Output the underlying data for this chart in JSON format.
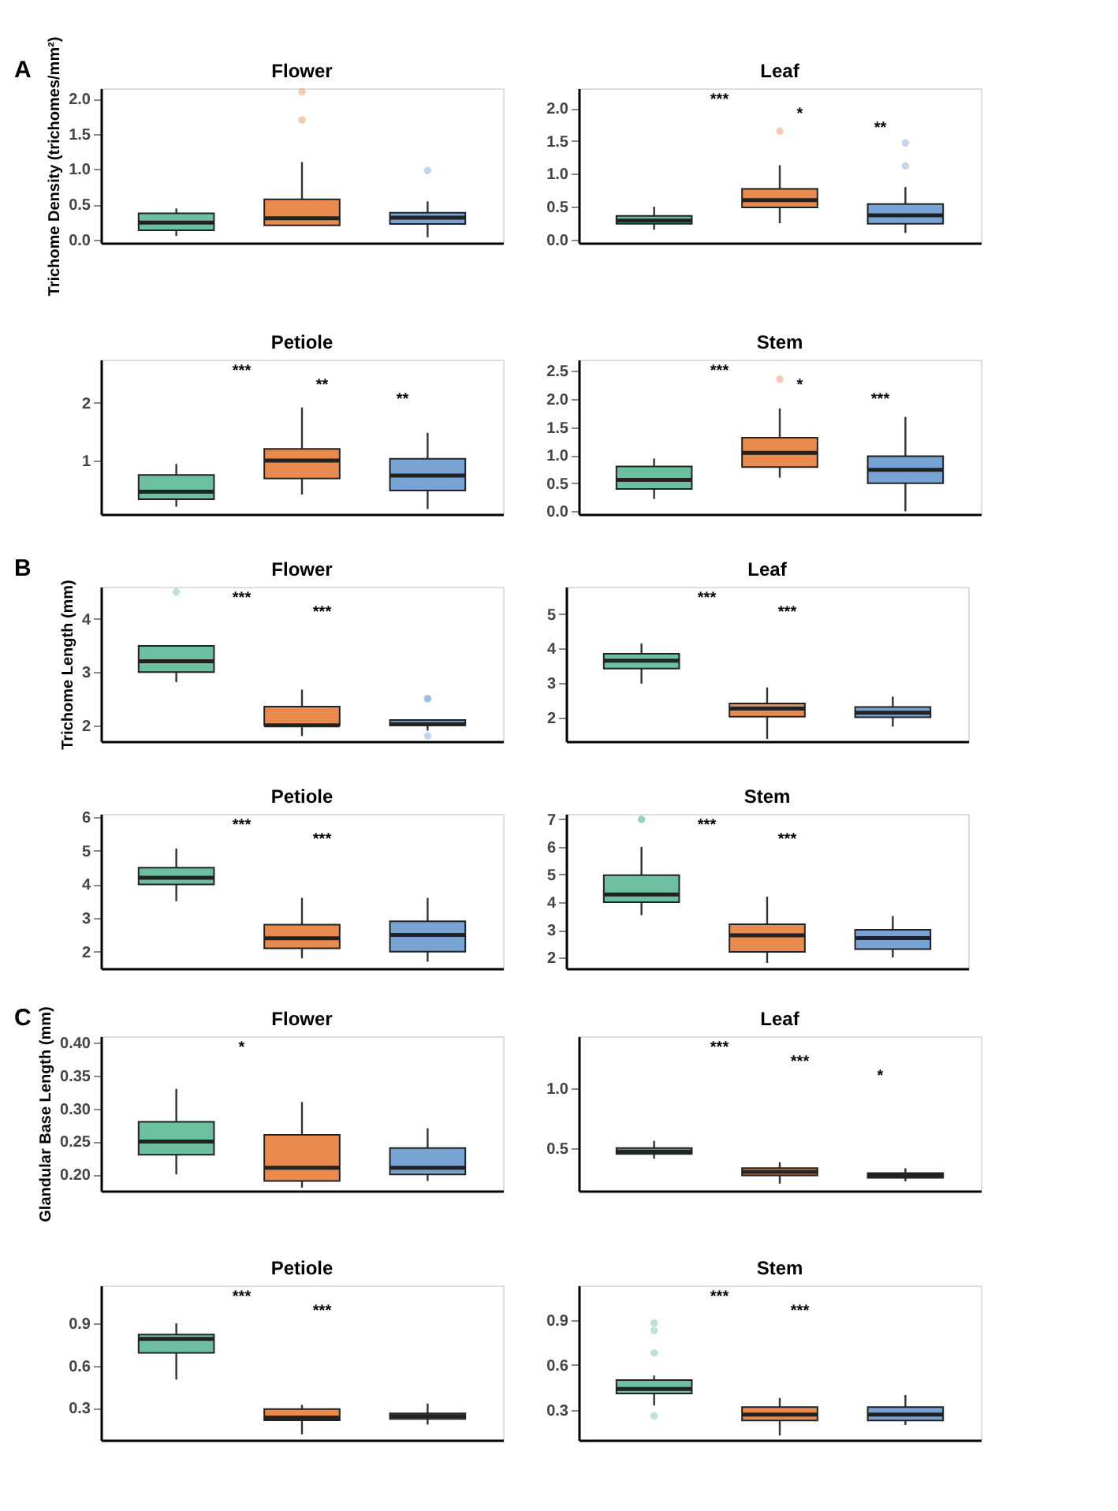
{
  "chart_data": [
    {
      "type": "box",
      "title": "Flower",
      "ylabel": "Trichome Density (trichomes/mm²)",
      "annotations": [
        "A"
      ],
      "categories": [
        null,
        null,
        null
      ],
      "colors": [
        "#6dbfa2",
        "#e98a4f",
        "#77a4d3"
      ],
      "tick_labels": "y",
      "ylim": [
        -0.05,
        2.15
      ],
      "yticks": [
        {
          "value": 0,
          "label": "0.0"
        },
        0.5,
        {
          "value": 1,
          "label": "1.0"
        },
        1.5,
        {
          "value": 2,
          "label": "2.0"
        }
      ],
      "boxes": [
        {
          "low": 0.05,
          "q1": 0.13,
          "median": 0.24,
          "q3": 0.37,
          "high": 0.44
        },
        {
          "low": 0.2,
          "q1": 0.2,
          "median": 0.3,
          "q3": 0.57,
          "high": 1.1,
          "outliers": [
            1.7,
            2.1
          ]
        },
        {
          "low": 0.03,
          "q1": 0.22,
          "median": 0.31,
          "q3": 0.38,
          "high": 0.54,
          "outliers": [
            0.98
          ]
        }
      ]
    },
    {
      "type": "box",
      "title": "Leaf",
      "annotations": [
        "***",
        "*",
        "**"
      ],
      "categories": [
        null,
        null,
        null
      ],
      "colors": [
        "#6dbfa2",
        "#e98a4f",
        "#77a4d3"
      ],
      "tick_labels": "y",
      "ylim": [
        -0.05,
        2.3
      ],
      "yticks": [
        {
          "value": 0,
          "label": "0.0"
        },
        0.5,
        {
          "value": 1,
          "label": "1.0"
        },
        1.5,
        {
          "value": 2,
          "label": "2.0"
        }
      ],
      "boxes": [
        {
          "low": 0.15,
          "q1": 0.24,
          "median": 0.29,
          "q3": 0.36,
          "high": 0.5
        },
        {
          "low": 0.25,
          "q1": 0.49,
          "median": 0.6,
          "q3": 0.77,
          "high": 1.13,
          "outliers": [
            1.65
          ]
        },
        {
          "low": 0.1,
          "q1": 0.24,
          "median": 0.37,
          "q3": 0.54,
          "high": 0.8,
          "outliers": [
            1.12,
            1.47
          ]
        }
      ]
    },
    {
      "type": "box",
      "title": "Petiole",
      "annotations": [
        "***",
        "**",
        "**"
      ],
      "categories": [
        null,
        null,
        null
      ],
      "colors": [
        "#6dbfa2",
        "#e98a4f",
        "#77a4d3"
      ],
      "tick_labels": "y",
      "ylim": [
        0.07,
        2.75
      ],
      "yticks": [
        1,
        2
      ],
      "boxes": [
        {
          "low": 0.2,
          "q1": 0.33,
          "median": 0.46,
          "q3": 0.75,
          "high": 0.94
        },
        {
          "low": 0.41,
          "q1": 0.69,
          "median": 1.0,
          "q3": 1.2,
          "high": 1.92
        },
        {
          "low": 0.16,
          "q1": 0.48,
          "median": 0.74,
          "q3": 1.03,
          "high": 1.48
        }
      ]
    },
    {
      "type": "box",
      "title": "Stem",
      "annotations": [
        "***",
        "*",
        "***"
      ],
      "categories": [
        null,
        null,
        null
      ],
      "colors": [
        "#6dbfa2",
        "#e98a4f",
        "#77a4d3"
      ],
      "tick_labels": "y",
      "ylim": [
        -0.05,
        2.7
      ],
      "yticks": [
        {
          "value": 0,
          "label": "0.0"
        },
        0.5,
        {
          "value": 1,
          "label": "1.0"
        },
        1.5,
        {
          "value": 2,
          "label": "2.0"
        },
        2.5
      ],
      "boxes": [
        {
          "low": 0.22,
          "q1": 0.4,
          "median": 0.56,
          "q3": 0.8,
          "high": 0.94
        },
        {
          "low": 0.6,
          "q1": 0.79,
          "median": 1.04,
          "q3": 1.31,
          "high": 1.83,
          "outliers": [
            2.35
          ]
        },
        {
          "low": 0.0,
          "q1": 0.5,
          "median": 0.74,
          "q3": 0.98,
          "high": 1.68
        }
      ]
    },
    {
      "type": "box",
      "title": "Flower",
      "ylabel": "Trichome Length (mm)",
      "annotations": [
        "B",
        "***",
        "***"
      ],
      "categories": [
        null,
        null,
        null
      ],
      "colors": [
        "#6dbfa2",
        "#e98a4f",
        "#77a4d3"
      ],
      "tick_labels": "y",
      "ylim": [
        1.7,
        4.6
      ],
      "yticks": [
        2,
        3,
        4
      ],
      "boxes": [
        {
          "low": 2.81,
          "q1": 3.0,
          "median": 3.2,
          "q3": 3.49,
          "high": 3.5,
          "outliers": [
            4.5
          ]
        },
        {
          "low": 1.8,
          "q1": 2.0,
          "median": 2.0,
          "q3": 2.35,
          "high": 2.67
        },
        {
          "low": 1.9,
          "q1": 2.0,
          "median": 2.02,
          "q3": 2.1,
          "high": 2.1,
          "outliers": [
            1.8,
            2.5,
            2.5
          ]
        }
      ]
    },
    {
      "type": "box",
      "title": "Leaf",
      "annotations": [
        "***",
        "***"
      ],
      "categories": [
        null,
        null,
        null
      ],
      "colors": [
        "#6dbfa2",
        "#e98a4f",
        "#77a4d3"
      ],
      "tick_labels": "y",
      "ylim": [
        1.3,
        5.8
      ],
      "yticks": [
        2,
        3,
        4,
        5
      ],
      "boxes": [
        {
          "low": 2.98,
          "q1": 3.42,
          "median": 3.65,
          "q3": 3.85,
          "high": 4.15
        },
        {
          "low": 1.37,
          "q1": 2.02,
          "median": 2.25,
          "q3": 2.4,
          "high": 2.87
        },
        {
          "low": 1.73,
          "q1": 2.0,
          "median": 2.13,
          "q3": 2.3,
          "high": 2.6
        }
      ]
    },
    {
      "type": "box",
      "title": "Petiole",
      "annotations": [
        "***",
        "***"
      ],
      "categories": [
        null,
        null,
        null
      ],
      "colors": [
        "#6dbfa2",
        "#e98a4f",
        "#77a4d3"
      ],
      "tick_labels": "y",
      "ylim": [
        1.5,
        6.1
      ],
      "yticks": [
        2,
        3,
        4,
        5,
        6
      ],
      "boxes": [
        {
          "low": 3.5,
          "q1": 4.0,
          "median": 4.2,
          "q3": 4.5,
          "high": 5.07
        },
        {
          "low": 1.8,
          "q1": 2.1,
          "median": 2.4,
          "q3": 2.8,
          "high": 3.6
        },
        {
          "low": 1.7,
          "q1": 2.0,
          "median": 2.5,
          "q3": 2.9,
          "high": 3.6
        }
      ]
    },
    {
      "type": "box",
      "title": "Stem",
      "annotations": [
        "***",
        "***"
      ],
      "categories": [
        null,
        null,
        null
      ],
      "colors": [
        "#6dbfa2",
        "#e98a4f",
        "#77a4d3"
      ],
      "tick_labels": "y",
      "ylim": [
        1.6,
        7.2
      ],
      "yticks": [
        2,
        3,
        4,
        5,
        6,
        7
      ],
      "boxes": [
        {
          "low": 3.53,
          "q1": 4.0,
          "median": 4.28,
          "q3": 4.98,
          "high": 6.0,
          "outliers": [
            7.0,
            7.0
          ]
        },
        {
          "low": 1.8,
          "q1": 2.2,
          "median": 2.8,
          "q3": 3.2,
          "high": 4.2
        },
        {
          "low": 2.0,
          "q1": 2.3,
          "median": 2.7,
          "q3": 3.0,
          "high": 3.5
        }
      ]
    },
    {
      "type": "box",
      "title": "Flower",
      "ylabel": "Glandular Base Length (mm)",
      "annotations": [
        "C",
        "*"
      ],
      "categories": [
        null,
        null,
        null
      ],
      "colors": [
        "#6dbfa2",
        "#e98a4f",
        "#77a4d3"
      ],
      "tick_labels": "y",
      "ylim": [
        0.175,
        0.41
      ],
      "yticks": [
        {
          "value": 0.2,
          "label": "0.20"
        },
        {
          "value": 0.25,
          "label": "0.25"
        },
        {
          "value": 0.3,
          "label": "0.30"
        },
        {
          "value": 0.35,
          "label": "0.35"
        },
        {
          "value": 0.4,
          "label": "0.40"
        }
      ],
      "boxes": [
        {
          "low": 0.2,
          "q1": 0.23,
          "median": 0.25,
          "q3": 0.28,
          "high": 0.33
        },
        {
          "low": 0.18,
          "q1": 0.19,
          "median": 0.21,
          "q3": 0.26,
          "high": 0.31
        },
        {
          "low": 0.19,
          "q1": 0.2,
          "median": 0.21,
          "q3": 0.24,
          "high": 0.27
        }
      ]
    },
    {
      "type": "box",
      "title": "Leaf",
      "annotations": [
        "***",
        "***",
        "*"
      ],
      "categories": [
        null,
        null,
        null
      ],
      "colors": [
        "#6dbfa2",
        "#e98a4f",
        "#77a4d3"
      ],
      "tick_labels": "y",
      "ylim": [
        0.14,
        1.44
      ],
      "yticks": [
        0.5,
        {
          "value": 1,
          "label": "1.0"
        }
      ],
      "boxes": [
        {
          "low": 0.41,
          "q1": 0.45,
          "median": 0.47,
          "q3": 0.5,
          "high": 0.56
        },
        {
          "low": 0.2,
          "q1": 0.27,
          "median": 0.3,
          "q3": 0.33,
          "high": 0.38
        },
        {
          "low": 0.22,
          "q1": 0.25,
          "median": 0.27,
          "q3": 0.29,
          "high": 0.33
        }
      ]
    },
    {
      "type": "box",
      "title": "Petiole",
      "annotations": [
        "***",
        "***"
      ],
      "categories": [
        null,
        null,
        null
      ],
      "colors": [
        "#6dbfa2",
        "#e98a4f",
        "#77a4d3"
      ],
      "tick_labels": "y",
      "ylim": [
        0.07,
        1.17
      ],
      "yticks": [
        0.3,
        0.6,
        0.9
      ],
      "boxes": [
        {
          "low": 0.5,
          "q1": 0.69,
          "median": 0.79,
          "q3": 0.82,
          "high": 0.9
        },
        {
          "low": 0.11,
          "q1": 0.21,
          "median": 0.23,
          "q3": 0.29,
          "high": 0.32
        },
        {
          "low": 0.18,
          "q1": 0.22,
          "median": 0.24,
          "q3": 0.26,
          "high": 0.33
        }
      ]
    },
    {
      "type": "box",
      "title": "Stem",
      "annotations": [
        "***",
        "***"
      ],
      "categories": [
        null,
        null,
        null
      ],
      "colors": [
        "#6dbfa2",
        "#e98a4f",
        "#77a4d3"
      ],
      "tick_labels": "y",
      "ylim": [
        0.1,
        1.13
      ],
      "yticks": [
        0.3,
        0.6,
        0.9
      ],
      "boxes": [
        {
          "low": 0.33,
          "q1": 0.41,
          "median": 0.44,
          "q3": 0.5,
          "high": 0.53,
          "outliers": [
            0.26,
            0.68,
            0.83,
            0.88
          ]
        },
        {
          "low": 0.13,
          "q1": 0.23,
          "median": 0.27,
          "q3": 0.32,
          "high": 0.38
        },
        {
          "low": 0.2,
          "q1": 0.23,
          "median": 0.27,
          "q3": 0.32,
          "high": 0.4
        }
      ]
    }
  ]
}
